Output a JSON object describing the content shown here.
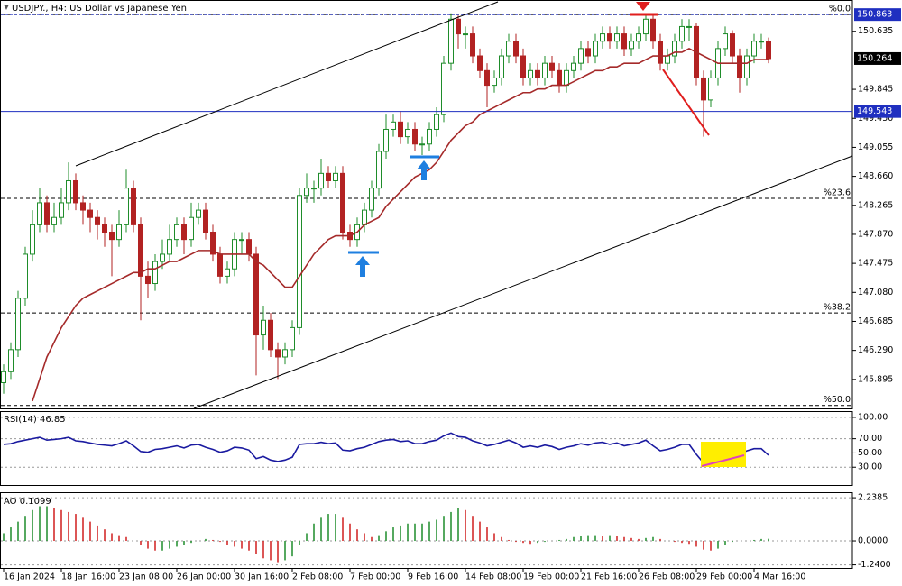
{
  "chart_data": [
    {
      "type": "candlestick",
      "title": "USDJPY., H4: US Dollar vs Japanese Yen",
      "up_color": "#1e8c2a",
      "down_color": "#b22222",
      "ylim": [
        145.5,
        151.0
      ],
      "yticks": [
        150.635,
        149.845,
        {
          "value": 149.45,
          "label": "149.450"
        },
        149.055,
        {
          "value": 148.66,
          "label": "148.660"
        },
        148.265,
        {
          "value": 147.87,
          "label": "147.870"
        },
        147.475,
        {
          "value": 147.08,
          "label": "147.080"
        },
        146.685,
        {
          "value": 146.29,
          "label": "146.290"
        },
        145.895
      ],
      "categories": [
        "16 Jan 2024",
        null,
        null,
        null,
        null,
        null,
        null,
        null,
        "18 Jan 16:00",
        null,
        null,
        null,
        null,
        null,
        null,
        null,
        "23 Jan 08:00",
        null,
        null,
        null,
        null,
        null,
        null,
        null,
        "26 Jan 00:00",
        null,
        null,
        null,
        null,
        null,
        null,
        null,
        "30 Jan 16:00",
        null,
        null,
        null,
        null,
        null,
        null,
        null,
        "2 Feb 08:00",
        null,
        null,
        null,
        null,
        null,
        null,
        null,
        "7 Feb 00:00",
        null,
        null,
        null,
        null,
        null,
        null,
        null,
        "9 Feb 16:00",
        null,
        null,
        null,
        null,
        null,
        null,
        null,
        "14 Feb 08:00",
        null,
        null,
        null,
        null,
        null,
        null,
        null,
        "19 Feb 00:00",
        null,
        null,
        null,
        null,
        null,
        null,
        null,
        "21 Feb 16:00",
        null,
        null,
        null,
        null,
        null,
        null,
        null,
        "26 Feb 08:00",
        null,
        null,
        null,
        null,
        null,
        null,
        null,
        "29 Feb 00:00",
        null,
        null,
        null,
        null,
        null,
        null,
        null,
        "4 Mar 16:00",
        null,
        null
      ],
      "ohlc": [
        [
          145.85,
          146.1,
          145.7,
          146.0
        ],
        [
          146.0,
          146.4,
          145.9,
          146.3
        ],
        [
          146.3,
          147.1,
          146.2,
          147.0
        ],
        [
          147.0,
          147.7,
          146.9,
          147.6
        ],
        [
          147.6,
          148.2,
          147.5,
          148.0
        ],
        [
          148.0,
          148.5,
          147.9,
          148.3
        ],
        [
          148.3,
          148.4,
          147.9,
          148.0
        ],
        [
          148.0,
          148.3,
          147.9,
          148.1
        ],
        [
          148.1,
          148.5,
          148.0,
          148.3
        ],
        [
          148.3,
          148.85,
          148.2,
          148.6
        ],
        [
          148.6,
          148.7,
          148.2,
          148.3
        ],
        [
          148.3,
          148.4,
          148.0,
          148.2
        ],
        [
          148.2,
          148.3,
          147.9,
          148.1
        ],
        [
          148.1,
          148.2,
          147.8,
          148.0
        ],
        [
          148.0,
          148.1,
          147.7,
          147.9
        ],
        [
          147.9,
          148.0,
          147.3,
          147.8
        ],
        [
          147.8,
          148.2,
          147.7,
          148.0
        ],
        [
          148.0,
          148.75,
          147.9,
          148.5
        ],
        [
          148.5,
          148.6,
          147.9,
          148.0
        ],
        [
          148.0,
          148.1,
          146.7,
          147.3
        ],
        [
          147.3,
          147.5,
          147.0,
          147.2
        ],
        [
          147.2,
          147.6,
          147.1,
          147.5
        ],
        [
          147.5,
          147.8,
          147.4,
          147.6
        ],
        [
          147.6,
          148.0,
          147.5,
          147.8
        ],
        [
          147.8,
          148.1,
          147.7,
          148.0
        ],
        [
          148.0,
          148.1,
          147.6,
          147.8
        ],
        [
          147.8,
          148.3,
          147.7,
          148.1
        ],
        [
          148.1,
          148.3,
          148.0,
          148.2
        ],
        [
          148.2,
          148.3,
          147.8,
          147.9
        ],
        [
          147.9,
          148.0,
          147.5,
          147.6
        ],
        [
          147.6,
          147.7,
          147.2,
          147.3
        ],
        [
          147.3,
          147.5,
          147.2,
          147.4
        ],
        [
          147.4,
          147.9,
          147.3,
          147.8
        ],
        [
          147.8,
          147.9,
          147.6,
          147.8
        ],
        [
          147.8,
          147.9,
          147.5,
          147.6
        ],
        [
          147.6,
          147.7,
          145.95,
          146.5
        ],
        [
          146.5,
          146.9,
          146.3,
          146.7
        ],
        [
          146.7,
          146.8,
          146.2,
          146.3
        ],
        [
          146.3,
          146.4,
          145.9,
          146.2
        ],
        [
          146.2,
          146.4,
          146.1,
          146.3
        ],
        [
          146.3,
          146.7,
          146.2,
          146.6
        ],
        [
          146.6,
          148.5,
          146.5,
          148.4
        ],
        [
          148.4,
          148.7,
          148.3,
          148.5
        ],
        [
          148.5,
          148.6,
          148.3,
          148.5
        ],
        [
          148.5,
          148.9,
          148.4,
          148.7
        ],
        [
          148.7,
          148.8,
          148.5,
          148.6
        ],
        [
          148.6,
          148.8,
          148.5,
          148.7
        ],
        [
          148.7,
          148.8,
          147.8,
          147.9
        ],
        [
          147.9,
          148.0,
          147.7,
          147.8
        ],
        [
          147.8,
          148.1,
          147.7,
          148.0
        ],
        [
          148.0,
          148.3,
          147.9,
          148.2
        ],
        [
          148.2,
          148.6,
          148.1,
          148.5
        ],
        [
          148.5,
          149.1,
          148.4,
          149.0
        ],
        [
          149.0,
          149.5,
          148.9,
          149.3
        ],
        [
          149.3,
          149.5,
          149.2,
          149.4
        ],
        [
          149.4,
          149.55,
          149.1,
          149.2
        ],
        [
          149.2,
          149.4,
          149.1,
          149.3
        ],
        [
          149.3,
          149.4,
          149.0,
          149.1
        ],
        [
          149.1,
          149.2,
          148.95,
          149.1
        ],
        [
          149.1,
          149.4,
          149.0,
          149.3
        ],
        [
          149.3,
          149.6,
          149.2,
          149.5
        ],
        [
          149.5,
          150.3,
          149.4,
          150.2
        ],
        [
          150.2,
          150.88,
          150.1,
          150.8
        ],
        [
          150.8,
          150.85,
          150.4,
          150.6
        ],
        [
          150.6,
          150.7,
          150.4,
          150.6
        ],
        [
          150.6,
          150.7,
          150.2,
          150.3
        ],
        [
          150.3,
          150.4,
          150.0,
          150.1
        ],
        [
          150.1,
          150.2,
          149.6,
          149.9
        ],
        [
          149.9,
          150.1,
          149.8,
          150.0
        ],
        [
          150.0,
          150.4,
          149.9,
          150.3
        ],
        [
          150.3,
          150.6,
          150.2,
          150.5
        ],
        [
          150.5,
          150.6,
          150.2,
          150.3
        ],
        [
          150.3,
          150.4,
          149.9,
          150.0
        ],
        [
          150.0,
          150.2,
          149.9,
          150.1
        ],
        [
          150.1,
          150.2,
          149.9,
          150.0
        ],
        [
          150.0,
          150.3,
          149.9,
          150.2
        ],
        [
          150.2,
          150.3,
          150.0,
          150.1
        ],
        [
          150.1,
          150.2,
          149.8,
          149.9
        ],
        [
          149.9,
          150.2,
          149.8,
          150.1
        ],
        [
          150.1,
          150.3,
          150.0,
          150.2
        ],
        [
          150.2,
          150.5,
          150.1,
          150.4
        ],
        [
          150.4,
          150.5,
          150.2,
          150.3
        ],
        [
          150.3,
          150.6,
          150.2,
          150.5
        ],
        [
          150.5,
          150.7,
          150.4,
          150.6
        ],
        [
          150.6,
          150.7,
          150.4,
          150.5
        ],
        [
          150.5,
          150.7,
          150.4,
          150.6
        ],
        [
          150.6,
          150.7,
          150.3,
          150.4
        ],
        [
          150.4,
          150.6,
          150.3,
          150.5
        ],
        [
          150.5,
          150.7,
          150.4,
          150.6
        ],
        [
          150.6,
          150.85,
          150.5,
          150.8
        ],
        [
          150.8,
          150.85,
          150.4,
          150.5
        ],
        [
          150.5,
          150.6,
          150.1,
          150.2
        ],
        [
          150.2,
          150.4,
          150.1,
          150.3
        ],
        [
          150.3,
          150.6,
          150.2,
          150.5
        ],
        [
          150.5,
          150.8,
          150.4,
          150.7
        ],
        [
          150.7,
          150.8,
          150.5,
          150.7
        ],
        [
          150.7,
          150.75,
          149.9,
          150.0
        ],
        [
          150.0,
          150.1,
          149.2,
          149.7
        ],
        [
          149.7,
          150.1,
          149.6,
          150.0
        ],
        [
          150.0,
          150.5,
          149.9,
          150.4
        ],
        [
          150.4,
          150.7,
          150.3,
          150.6
        ],
        [
          150.6,
          150.65,
          150.2,
          150.3
        ],
        [
          150.3,
          150.4,
          149.8,
          150.0
        ],
        [
          150.0,
          150.4,
          149.9,
          150.3
        ],
        [
          150.3,
          150.6,
          150.2,
          150.5
        ],
        [
          150.5,
          150.6,
          150.4,
          150.5
        ],
        [
          150.5,
          150.55,
          150.2,
          150.264
        ]
      ],
      "ma": {
        "color": "#a52a2a",
        "values": [
          null,
          null,
          null,
          null,
          145.6,
          145.9,
          146.2,
          146.4,
          146.6,
          146.75,
          146.9,
          147.0,
          147.05,
          147.1,
          147.15,
          147.2,
          147.25,
          147.3,
          147.35,
          147.35,
          147.4,
          147.4,
          147.45,
          147.5,
          147.5,
          147.55,
          147.6,
          147.65,
          147.65,
          147.65,
          147.6,
          147.6,
          147.6,
          147.6,
          147.6,
          147.5,
          147.45,
          147.35,
          147.25,
          147.15,
          147.15,
          147.3,
          147.45,
          147.6,
          147.7,
          147.8,
          147.85,
          147.85,
          147.85,
          147.9,
          148.0,
          148.05,
          148.1,
          148.25,
          148.35,
          148.45,
          148.55,
          148.65,
          148.7,
          148.75,
          148.85,
          149.0,
          149.15,
          149.25,
          149.35,
          149.4,
          149.5,
          149.55,
          149.6,
          149.65,
          149.7,
          149.75,
          149.8,
          149.8,
          149.85,
          149.85,
          149.9,
          149.9,
          149.9,
          149.95,
          150.0,
          150.05,
          150.1,
          150.1,
          150.15,
          150.15,
          150.2,
          150.2,
          150.2,
          150.25,
          150.3,
          150.3,
          150.3,
          150.35,
          150.35,
          150.4,
          150.35,
          150.3,
          150.25,
          150.2,
          150.2,
          150.2,
          150.2,
          150.2,
          150.25,
          150.25,
          150.25
        ]
      },
      "price_labels": [
        {
          "value": 150.863,
          "color": "#1f2fc0",
          "line": "dashed"
        },
        {
          "value": 149.543,
          "color": "#1f2fc0",
          "line": "solid"
        },
        {
          "value": 150.264,
          "color": "#000000"
        }
      ],
      "fib_levels": [
        {
          "label": "%0.0",
          "value": 150.863
        },
        {
          "label": "%23.6",
          "value": 148.36
        },
        {
          "label": "%38.2",
          "value": 146.8
        },
        {
          "label": "%50.0",
          "value": 145.54
        }
      ]
    },
    {
      "type": "line",
      "title": "RSI(14) 46.85",
      "color": "#1a1aa0",
      "ylim": [
        5,
        107.5
      ],
      "yticks": [
        {
          "value": 100,
          "label": "100.00"
        },
        {
          "value": 70,
          "label": "70.00"
        },
        {
          "value": 50,
          "label": "50.00"
        },
        {
          "value": 30,
          "label": "30.00"
        }
      ],
      "values": [
        62,
        63,
        66,
        68,
        70,
        72,
        68,
        69,
        70,
        72,
        67,
        66,
        64,
        62,
        61,
        60,
        63,
        67,
        60,
        52,
        51,
        55,
        56,
        58,
        60,
        57,
        61,
        62,
        58,
        55,
        51,
        53,
        58,
        57,
        54,
        42,
        45,
        40,
        38,
        40,
        44,
        62,
        63,
        63,
        65,
        63,
        64,
        54,
        53,
        56,
        58,
        62,
        66,
        68,
        69,
        66,
        67,
        63,
        63,
        66,
        68,
        74,
        78,
        73,
        72,
        67,
        64,
        60,
        62,
        65,
        68,
        64,
        58,
        60,
        58,
        61,
        59,
        55,
        58,
        60,
        63,
        61,
        64,
        65,
        62,
        64,
        60,
        62,
        64,
        68,
        60,
        53,
        55,
        58,
        62,
        62,
        48,
        36,
        45,
        54,
        58,
        53,
        48,
        53,
        56,
        56,
        46.85
      ]
    },
    {
      "type": "histogram",
      "title": "AO 0.1099",
      "up_color": "#1e8c2a",
      "down_color": "#d01e1e",
      "ylim": [
        -1.4,
        2.43
      ],
      "yticks": [
        2.2385,
        {
          "value": 0,
          "label": "0.0000"
        },
        {
          "value": -1.24,
          "label": "-1.2400"
        }
      ],
      "values": [
        0.4,
        0.7,
        1.0,
        1.3,
        1.6,
        1.8,
        1.8,
        1.7,
        1.6,
        1.5,
        1.4,
        1.2,
        1.0,
        0.8,
        0.6,
        0.4,
        0.3,
        0.2,
        0.0,
        -0.2,
        -0.4,
        -0.5,
        -0.5,
        -0.4,
        -0.3,
        -0.2,
        -0.1,
        0.0,
        0.1,
        0.05,
        -0.05,
        -0.2,
        -0.3,
        -0.4,
        -0.5,
        -0.7,
        -0.9,
        -1.0,
        -1.1,
        -1.0,
        -0.8,
        -0.2,
        0.4,
        0.9,
        1.2,
        1.4,
        1.4,
        1.2,
        0.9,
        0.6,
        0.4,
        0.2,
        0.3,
        0.5,
        0.7,
        0.8,
        0.9,
        0.9,
        0.9,
        1.0,
        1.1,
        1.3,
        1.5,
        1.7,
        1.6,
        1.3,
        1.0,
        0.7,
        0.4,
        0.2,
        0.05,
        -0.05,
        -0.1,
        -0.15,
        -0.1,
        -0.05,
        0.0,
        0.05,
        0.1,
        0.2,
        0.25,
        0.3,
        0.3,
        0.25,
        0.3,
        0.25,
        0.2,
        0.15,
        0.1,
        0.15,
        0.2,
        0.1,
        0.0,
        -0.05,
        -0.1,
        -0.15,
        -0.3,
        -0.45,
        -0.5,
        -0.4,
        -0.2,
        -0.05,
        0.0,
        0.0,
        0.05,
        0.1,
        0.1099
      ]
    }
  ]
}
